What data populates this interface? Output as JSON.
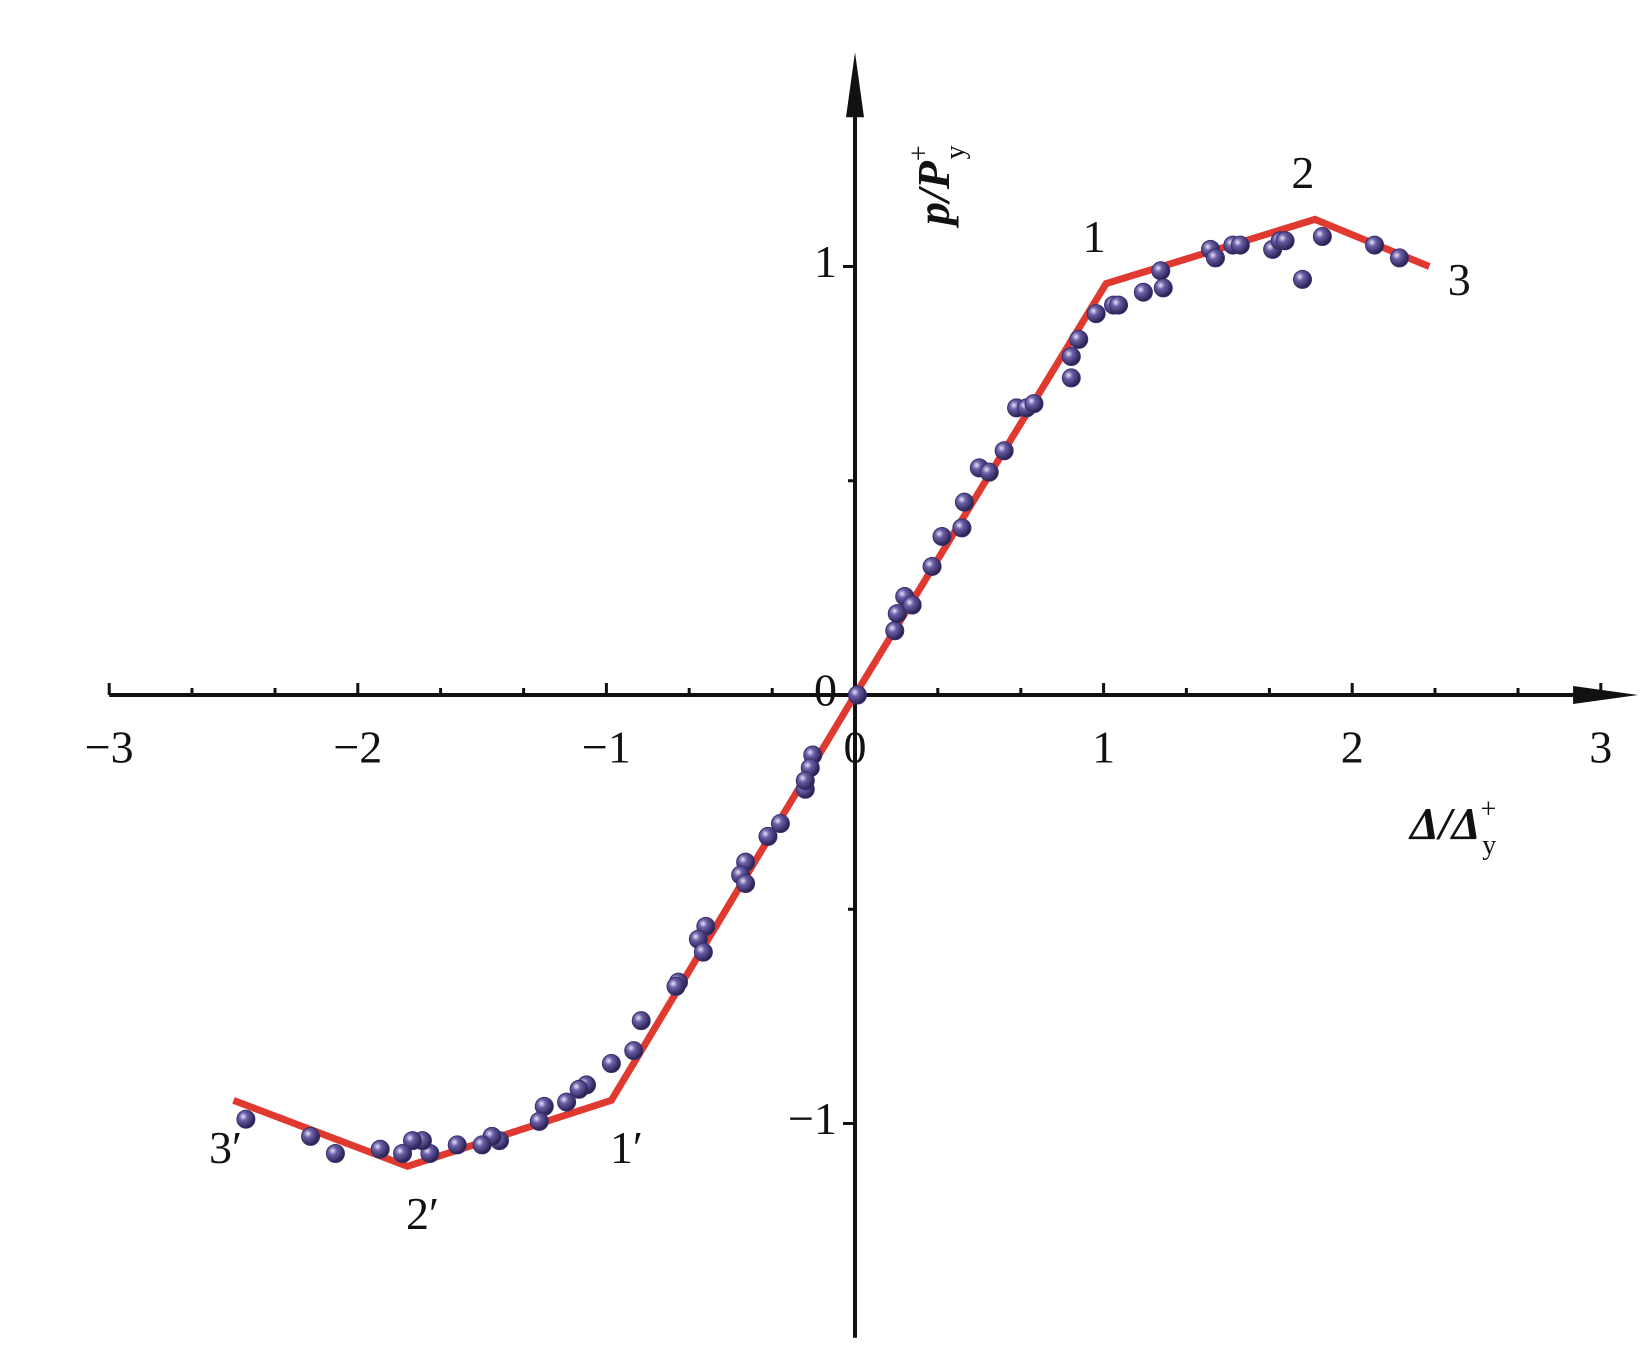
{
  "chart_data": {
    "type": "scatter",
    "xlabel": {
      "main": "Δ/Δ",
      "sup": "+",
      "sub": "y"
    },
    "ylabel": {
      "main": "p/P",
      "sup": "+",
      "sub": "y"
    },
    "xlim": [
      -3,
      3.15
    ],
    "ylim": [
      -1.5,
      1.5
    ],
    "xticks": [
      {
        "value": -3,
        "label": "−3"
      },
      {
        "value": -2,
        "label": "−2"
      },
      {
        "value": -1,
        "label": "−1"
      },
      0,
      1,
      2,
      3
    ],
    "xminorticks": [
      -2.667,
      -2.333,
      -1.667,
      -1.333,
      -0.667,
      -0.333,
      0.333,
      0.667,
      1.333,
      1.667,
      2.333,
      2.667
    ],
    "yticks": [
      {
        "value": -1,
        "label": "−1"
      },
      0,
      1
    ],
    "yminorticks": [
      -0.5,
      0.5
    ],
    "series": [
      {
        "kind": "line",
        "color": "#e03a30",
        "x": [
          -2.5,
          -1.8,
          -0.98,
          0,
          1.01,
          1.85,
          2.31
        ],
        "values": [
          -0.946,
          -1.1,
          -0.946,
          0,
          0.96,
          1.11,
          1.0
        ],
        "point_labels": [
          "3′",
          "2′",
          "1′",
          null,
          "1",
          "2",
          "3"
        ]
      },
      {
        "kind": "points",
        "color": "#3a2f6e",
        "x": [
          0.01,
          0.16,
          0.17,
          0.2,
          0.23,
          0.31,
          0.35,
          0.43,
          0.44,
          0.5,
          0.54,
          0.6,
          0.65,
          0.69,
          0.72,
          0.87,
          0.87,
          0.9,
          0.97,
          1.04,
          1.06,
          1.16,
          1.23,
          1.24,
          1.43,
          1.45,
          1.52,
          1.55,
          1.68,
          1.71,
          1.73,
          1.8,
          1.88,
          2.09,
          2.19,
          -0.17,
          -0.18,
          -0.2,
          -0.2,
          -0.3,
          -0.35,
          -0.44,
          -0.46,
          -0.44,
          -0.6,
          -0.63,
          -0.61,
          -0.71,
          -0.72,
          -0.86,
          -0.89,
          -0.98,
          -1.08,
          -1.11,
          -1.16,
          -1.25,
          -1.27,
          -1.43,
          -1.46,
          -1.5,
          -1.6,
          -1.71,
          -1.74,
          -1.78,
          -1.82,
          -1.91,
          -2.09,
          -2.19,
          -2.45
        ],
        "values": [
          0,
          0.15,
          0.19,
          0.23,
          0.21,
          0.3,
          0.37,
          0.39,
          0.45,
          0.53,
          0.52,
          0.57,
          0.67,
          0.67,
          0.68,
          0.74,
          0.79,
          0.83,
          0.89,
          0.91,
          0.91,
          0.94,
          0.99,
          0.95,
          1.04,
          1.02,
          1.05,
          1.05,
          1.04,
          1.06,
          1.06,
          0.97,
          1.07,
          1.05,
          1.02,
          -0.14,
          -0.17,
          -0.22,
          -0.2,
          -0.3,
          -0.33,
          -0.39,
          -0.42,
          -0.44,
          -0.54,
          -0.57,
          -0.6,
          -0.67,
          -0.68,
          -0.76,
          -0.83,
          -0.86,
          -0.91,
          -0.92,
          -0.95,
          -0.96,
          -0.995,
          -1.04,
          -1.03,
          -1.05,
          -1.05,
          -1.07,
          -1.04,
          -1.04,
          -1.07,
          -1.06,
          -1.07,
          -1.03,
          -0.99
        ]
      }
    ]
  }
}
